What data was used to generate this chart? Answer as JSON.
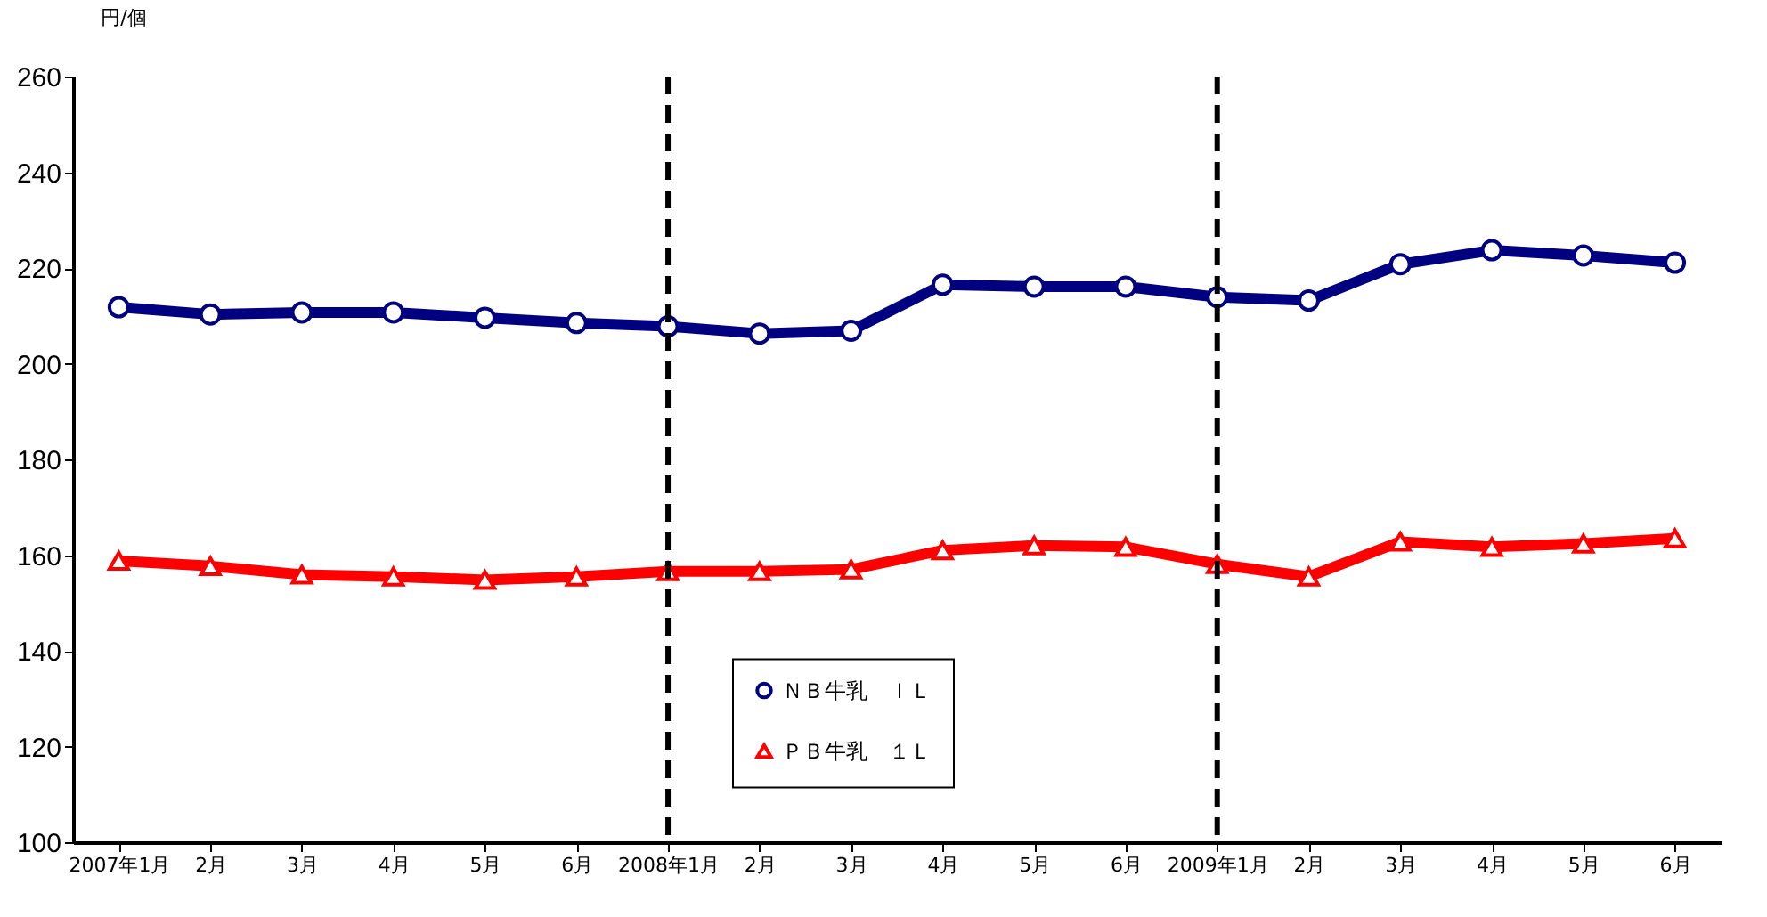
{
  "chart_data": {
    "type": "line",
    "ylabel": "円/個",
    "categories": [
      "2007年1月",
      "2月",
      "3月",
      "4月",
      "5月",
      "6月",
      "2008年1月",
      "2月",
      "3月",
      "4月",
      "5月",
      "6月",
      "2009年1月",
      "2月",
      "3月",
      "4月",
      "5月",
      "6月"
    ],
    "series": [
      {
        "name": "ＮＢ牛乳　ＩＬ",
        "color": "#000080",
        "marker": "circle",
        "values": [
          211.8,
          210.3,
          210.7,
          210.7,
          209.6,
          208.5,
          207.8,
          206.3,
          206.9,
          216.5,
          216.1,
          216.1,
          213.9,
          213.2,
          220.8,
          223.7,
          222.6,
          221.1
        ]
      },
      {
        "name": "ＰＢ牛乳　１Ｌ",
        "color": "#ff0000",
        "marker": "triangle",
        "values": [
          158.8,
          157.7,
          155.9,
          155.5,
          154.8,
          155.5,
          156.6,
          156.6,
          157.0,
          161.0,
          162.0,
          161.7,
          158.1,
          155.5,
          162.8,
          161.7,
          162.4,
          163.5
        ]
      }
    ],
    "ylim": [
      100,
      260
    ],
    "yticks": [
      100,
      120,
      140,
      160,
      180,
      200,
      220,
      240,
      260
    ],
    "ref_lines": [
      {
        "axis": "x",
        "value": "2008年1月",
        "color": "#000000",
        "line_style": "dashed"
      },
      {
        "axis": "x",
        "value": "2009年1月",
        "color": "#000000",
        "line_style": "dashed"
      }
    ],
    "grid": false,
    "legend": "bottom",
    "line_style": "solid"
  }
}
